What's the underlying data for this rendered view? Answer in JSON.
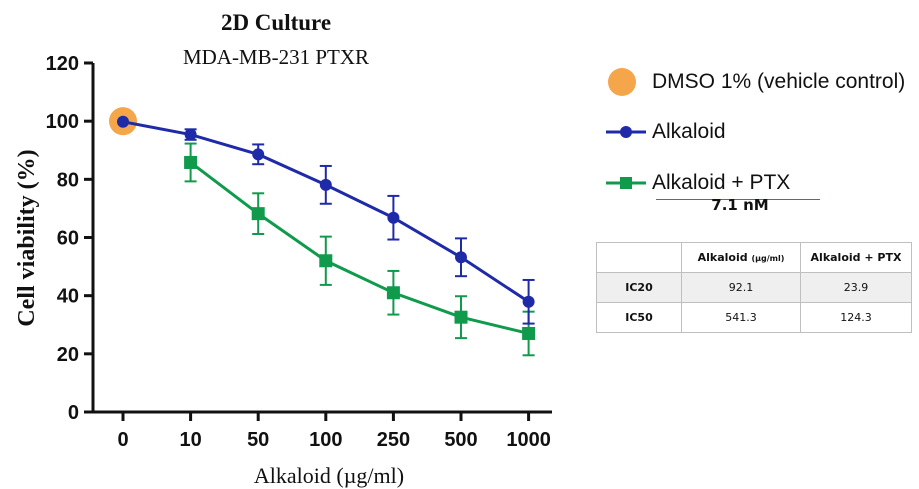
{
  "chart_data": {
    "type": "line",
    "title": "2D Culture",
    "subtitle": "MDA-MB-231 PTXR",
    "xlabel": "Alkaloid (µg/ml)",
    "ylabel": "Cell viability (%)",
    "categories": [
      "0",
      "10",
      "50",
      "100",
      "250",
      "500",
      "1000"
    ],
    "ylim": [
      0,
      120
    ],
    "yticks": [
      "0",
      "20",
      "40",
      "60",
      "80",
      "100",
      "120"
    ],
    "grid": false,
    "legend_position": "right",
    "series": [
      {
        "name": "DMSO 1% (vehicle control)",
        "marker": "circle",
        "color": "#f5a54a",
        "points": [
          {
            "category": "0",
            "value": 100
          }
        ]
      },
      {
        "name": "Alkaloid",
        "marker": "circle",
        "color": "#1f2aa8",
        "values": [
          99.8,
          95.4,
          88.6,
          78.1,
          66.8,
          53.2,
          37.9
        ],
        "errors": [
          0.0,
          1.8,
          3.4,
          6.5,
          7.5,
          6.5,
          7.5
        ]
      },
      {
        "name": "Alkaloid + PTX",
        "marker": "square",
        "color": "#0f9a4c",
        "values": [
          null,
          85.8,
          68.2,
          52.0,
          41.0,
          32.6,
          27.0
        ],
        "errors": [
          null,
          6.5,
          7.0,
          8.3,
          7.5,
          7.2,
          7.5
        ]
      }
    ]
  },
  "legend_extra": {
    "ptx_concentration": "7.1 nM"
  },
  "ic_table": {
    "headers": [
      "",
      "Alkaloid",
      "(µg/ml)",
      "Alkaloid + PTX"
    ],
    "rows": [
      {
        "label": "IC20",
        "alkaloid": "92.1",
        "combo": "23.9"
      },
      {
        "label": "IC50",
        "alkaloid": "541.3",
        "combo": "124.3"
      }
    ]
  }
}
